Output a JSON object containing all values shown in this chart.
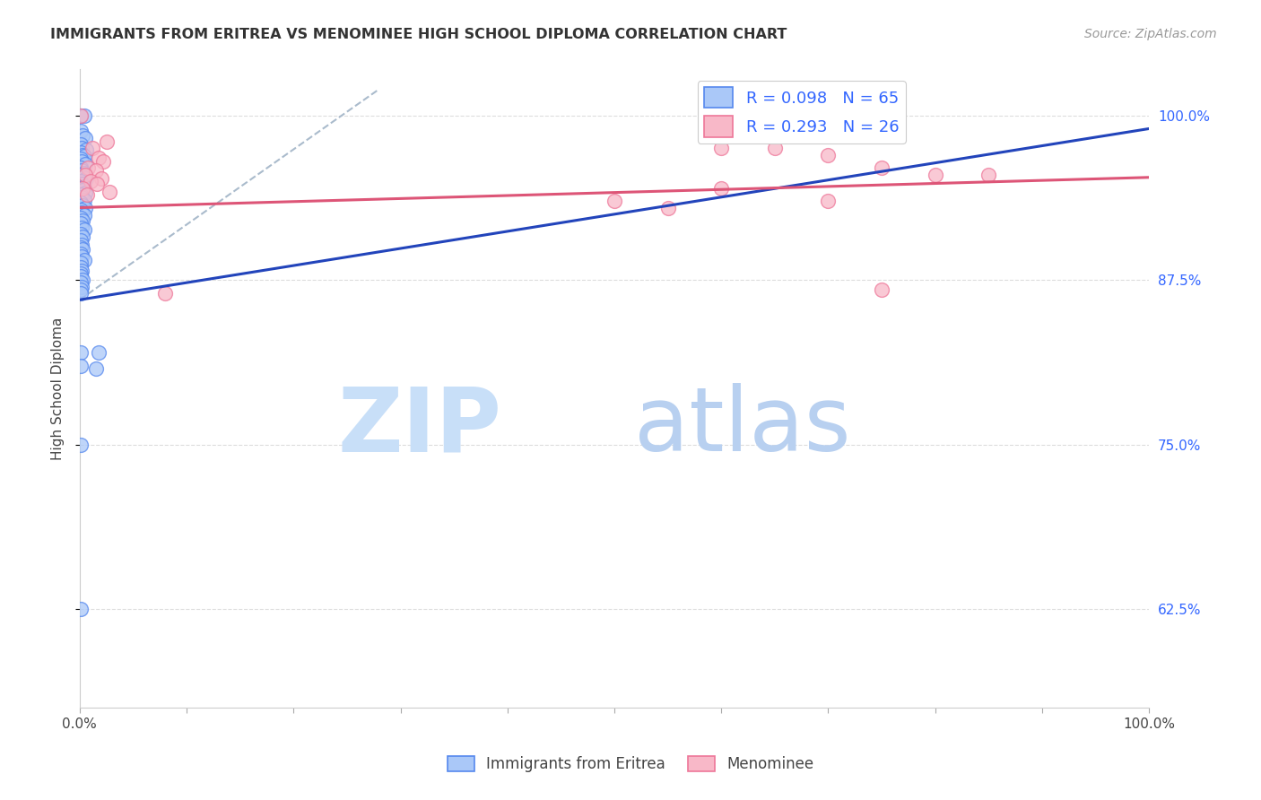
{
  "title": "IMMIGRANTS FROM ERITREA VS MENOMINEE HIGH SCHOOL DIPLOMA CORRELATION CHART",
  "source": "Source: ZipAtlas.com",
  "ylabel": "High School Diploma",
  "ytick_labels": [
    "100.0%",
    "87.5%",
    "75.0%",
    "62.5%"
  ],
  "ytick_values": [
    1.0,
    0.875,
    0.75,
    0.625
  ],
  "legend1_label": "R = 0.098   N = 65",
  "legend2_label": "R = 0.293   N = 26",
  "blue_color": "#aac8f8",
  "pink_color": "#f8b8c8",
  "blue_edge": "#5588ee",
  "pink_edge": "#ee7799",
  "trendline_blue": "#2244bb",
  "trendline_pink": "#dd5577",
  "trendline_gray": "#aabbcc",
  "blue_points": [
    [
      0.001,
      1.0
    ],
    [
      0.004,
      1.0
    ],
    [
      0.001,
      0.988
    ],
    [
      0.003,
      0.985
    ],
    [
      0.005,
      0.983
    ],
    [
      0.001,
      0.978
    ],
    [
      0.002,
      0.975
    ],
    [
      0.006,
      0.974
    ],
    [
      0.001,
      0.972
    ],
    [
      0.003,
      0.97
    ],
    [
      0.004,
      0.969
    ],
    [
      0.001,
      0.967
    ],
    [
      0.002,
      0.965
    ],
    [
      0.005,
      0.963
    ],
    [
      0.001,
      0.96
    ],
    [
      0.002,
      0.958
    ],
    [
      0.004,
      0.956
    ],
    [
      0.001,
      0.955
    ],
    [
      0.003,
      0.953
    ],
    [
      0.006,
      0.952
    ],
    [
      0.001,
      0.95
    ],
    [
      0.002,
      0.948
    ],
    [
      0.004,
      0.946
    ],
    [
      0.001,
      0.945
    ],
    [
      0.003,
      0.943
    ],
    [
      0.005,
      0.941
    ],
    [
      0.001,
      0.94
    ],
    [
      0.002,
      0.938
    ],
    [
      0.004,
      0.936
    ],
    [
      0.001,
      0.934
    ],
    [
      0.003,
      0.932
    ],
    [
      0.005,
      0.93
    ],
    [
      0.001,
      0.928
    ],
    [
      0.002,
      0.926
    ],
    [
      0.004,
      0.924
    ],
    [
      0.001,
      0.922
    ],
    [
      0.003,
      0.92
    ],
    [
      0.001,
      0.918
    ],
    [
      0.002,
      0.915
    ],
    [
      0.004,
      0.913
    ],
    [
      0.001,
      0.91
    ],
    [
      0.003,
      0.908
    ],
    [
      0.001,
      0.905
    ],
    [
      0.002,
      0.902
    ],
    [
      0.001,
      0.9
    ],
    [
      0.003,
      0.898
    ],
    [
      0.001,
      0.895
    ],
    [
      0.002,
      0.893
    ],
    [
      0.004,
      0.89
    ],
    [
      0.001,
      0.888
    ],
    [
      0.001,
      0.885
    ],
    [
      0.002,
      0.882
    ],
    [
      0.001,
      0.88
    ],
    [
      0.001,
      0.878
    ],
    [
      0.003,
      0.875
    ],
    [
      0.001,
      0.873
    ],
    [
      0.002,
      0.87
    ],
    [
      0.001,
      0.868
    ],
    [
      0.001,
      0.865
    ],
    [
      0.001,
      0.82
    ],
    [
      0.018,
      0.82
    ],
    [
      0.001,
      0.81
    ],
    [
      0.015,
      0.808
    ],
    [
      0.001,
      0.75
    ],
    [
      0.001,
      0.625
    ]
  ],
  "pink_points": [
    [
      0.001,
      1.0
    ],
    [
      0.025,
      0.98
    ],
    [
      0.012,
      0.975
    ],
    [
      0.018,
      0.968
    ],
    [
      0.022,
      0.965
    ],
    [
      0.008,
      0.96
    ],
    [
      0.015,
      0.958
    ],
    [
      0.005,
      0.955
    ],
    [
      0.02,
      0.952
    ],
    [
      0.01,
      0.95
    ],
    [
      0.016,
      0.948
    ],
    [
      0.003,
      0.945
    ],
    [
      0.028,
      0.942
    ],
    [
      0.007,
      0.94
    ],
    [
      0.08,
      0.865
    ],
    [
      0.5,
      0.935
    ],
    [
      0.55,
      0.93
    ],
    [
      0.6,
      0.975
    ],
    [
      0.6,
      0.945
    ],
    [
      0.65,
      0.975
    ],
    [
      0.7,
      0.97
    ],
    [
      0.7,
      0.935
    ],
    [
      0.75,
      0.96
    ],
    [
      0.75,
      0.868
    ],
    [
      0.8,
      0.955
    ],
    [
      0.85,
      0.955
    ]
  ],
  "xlim": [
    0.0,
    1.0
  ],
  "ylim": [
    0.55,
    1.035
  ],
  "blue_trend": [
    0.0,
    0.86,
    1.0,
    0.99
  ],
  "pink_trend": [
    0.0,
    0.93,
    1.0,
    0.953
  ],
  "gray_dash": [
    0.0,
    0.86,
    0.28,
    1.02
  ],
  "grid_color": "#dddddd",
  "bg_color": "#ffffff",
  "watermark_zip_color": "#c8dff8",
  "watermark_atlas_color": "#b8d0f0"
}
